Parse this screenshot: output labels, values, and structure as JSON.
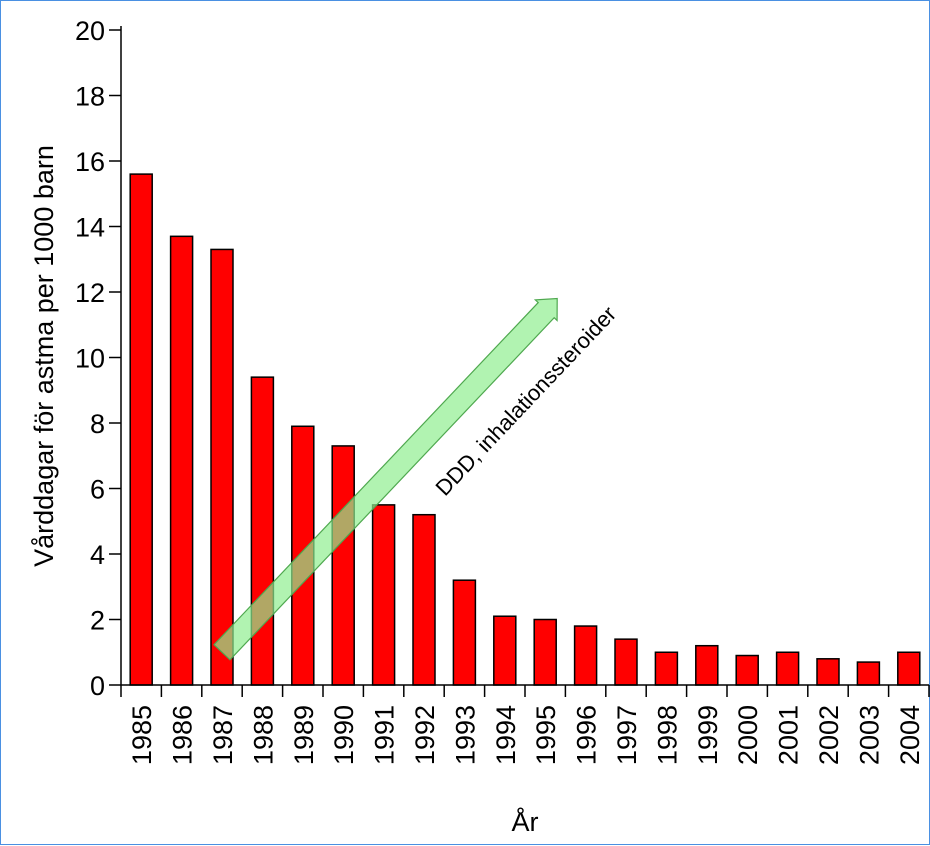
{
  "chart_data": {
    "type": "bar",
    "categories": [
      "1985",
      "1986",
      "1987",
      "1988",
      "1989",
      "1990",
      "1991",
      "1992",
      "1993",
      "1994",
      "1995",
      "1996",
      "1997",
      "1998",
      "1999",
      "2000",
      "2001",
      "2002",
      "2003",
      "2004"
    ],
    "values": [
      15.6,
      13.7,
      13.3,
      9.4,
      7.9,
      7.3,
      5.5,
      5.2,
      3.2,
      2.1,
      2.0,
      1.8,
      1.4,
      1.0,
      1.2,
      0.9,
      1.0,
      0.8,
      0.7,
      1.0
    ],
    "xlabel": "År",
    "ylabel": "Vårddagar för astma per 1000 barn",
    "ylim": [
      0,
      20
    ],
    "yticks": [
      0,
      2,
      4,
      6,
      8,
      10,
      12,
      14,
      16,
      18,
      20
    ],
    "grid": false,
    "legend": "none",
    "bar_color": "#ff0000",
    "annotation": {
      "text": "DDD, inhalationssteroider",
      "arrow_color": "#90ee90",
      "arrow_from": {
        "x": "1987",
        "y": 1.0
      },
      "arrow_to": {
        "x": "1995",
        "y": 11.8
      }
    }
  }
}
